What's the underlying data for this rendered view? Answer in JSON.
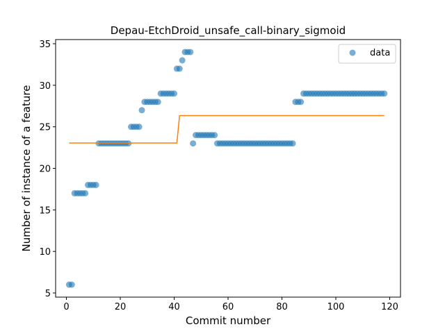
{
  "chart_data": {
    "type": "scatter",
    "title": "Depau-EtchDroid_unsafe_call-binary_sigmoid",
    "xlabel": "Commit number",
    "ylabel": "Number of instance of a feature",
    "xlim": [
      -4,
      124
    ],
    "ylim": [
      4.5,
      35.5
    ],
    "xticks": [
      0,
      20,
      40,
      60,
      80,
      100,
      120
    ],
    "yticks": [
      5,
      10,
      15,
      20,
      25,
      30,
      35
    ],
    "legend_position": "top-right",
    "grid": false,
    "colors": {
      "data": "#1f77b4",
      "fit": "#ff7f0e"
    },
    "series": [
      {
        "name": "data",
        "kind": "scatter",
        "x": [
          1,
          2,
          3,
          4,
          5,
          6,
          7,
          8,
          9,
          10,
          11,
          12,
          13,
          14,
          15,
          16,
          17,
          18,
          19,
          20,
          21,
          22,
          23,
          24,
          25,
          26,
          27,
          28,
          29,
          30,
          31,
          32,
          33,
          34,
          35,
          36,
          37,
          38,
          39,
          40,
          41,
          42,
          43,
          44,
          45,
          46,
          47,
          48,
          49,
          50,
          51,
          52,
          53,
          54,
          55,
          56,
          57,
          58,
          59,
          60,
          61,
          62,
          63,
          64,
          65,
          66,
          67,
          68,
          69,
          70,
          71,
          72,
          73,
          74,
          75,
          76,
          77,
          78,
          79,
          80,
          81,
          82,
          83,
          84,
          85,
          86,
          87,
          88,
          89,
          90,
          91,
          92,
          93,
          94,
          95,
          96,
          97,
          98,
          99,
          100,
          101,
          102,
          103,
          104,
          105,
          106,
          107,
          108,
          109,
          110,
          111,
          112,
          113,
          114,
          115,
          116,
          117,
          118
        ],
        "y": [
          6,
          6,
          17,
          17,
          17,
          17,
          17,
          18,
          18,
          18,
          18,
          23,
          23,
          23,
          23,
          23,
          23,
          23,
          23,
          23,
          23,
          23,
          23,
          25,
          25,
          25,
          25,
          27,
          28,
          28,
          28,
          28,
          28,
          28,
          29,
          29,
          29,
          29,
          29,
          29,
          32,
          32,
          33,
          34,
          34,
          34,
          23,
          24,
          24,
          24,
          24,
          24,
          24,
          24,
          24,
          23,
          23,
          23,
          23,
          23,
          23,
          23,
          23,
          23,
          23,
          23,
          23,
          23,
          23,
          23,
          23,
          23,
          23,
          23,
          23,
          23,
          23,
          23,
          23,
          23,
          23,
          23,
          23,
          23,
          28,
          28,
          28,
          29,
          29,
          29,
          29,
          29,
          29,
          29,
          29,
          29,
          29,
          29,
          29,
          29,
          29,
          29,
          29,
          29,
          29,
          29,
          29,
          29,
          29,
          29,
          29,
          29,
          29,
          29,
          29,
          29,
          29,
          29
        ]
      },
      {
        "kind": "line",
        "x": [
          1,
          41,
          42,
          118
        ],
        "y": [
          23.05,
          23.05,
          26.35,
          26.35
        ]
      }
    ]
  }
}
